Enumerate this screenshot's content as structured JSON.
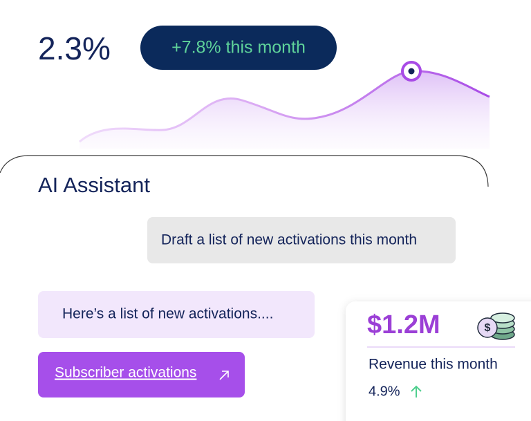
{
  "metric": {
    "value": "2.3%",
    "badge": "+7.8% this month"
  },
  "assistant": {
    "title": "AI Assistant",
    "user_message": "Draft a list of new activations this month",
    "reply": "Here’s a list of new activations....",
    "link": "Subscriber activations"
  },
  "revenue_card": {
    "value": "$1.2M",
    "label": "Revenue this month",
    "change": "4.9%"
  }
}
